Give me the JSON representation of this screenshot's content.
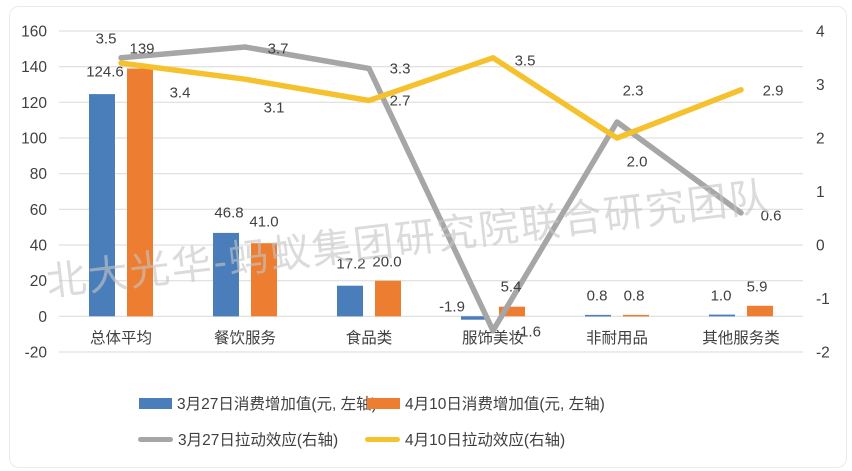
{
  "watermark": {
    "text": "北大光华-蚂蚁集团研究院联合研究团队"
  },
  "colors": {
    "background": "#FFFFFF",
    "grid": "#D9D9D9",
    "axis_text": "#404040",
    "label_text": "#404040",
    "panel_border": "#EBEBEB",
    "watermark": "#C5C5C5"
  },
  "chart_data": {
    "type": "combo-bar-line",
    "categories": [
      "总体平均",
      "餐饮服务",
      "食品类",
      "服饰美妆",
      "非耐用品",
      "其他服务类"
    ],
    "series": [
      {
        "name": "3月27日消费增加值(元, 左轴)",
        "type": "bar",
        "axis": "left",
        "color": "#4A7EBB",
        "values": [
          124.6,
          46.8,
          17.2,
          -1.9,
          0.8,
          1.0
        ],
        "labels": [
          "124.6",
          "46.8",
          "17.2",
          "-1.9",
          "0.8",
          "1.0"
        ]
      },
      {
        "name": "4月10日消费增加值(元, 左轴)",
        "type": "bar",
        "axis": "left",
        "color": "#ED7D31",
        "values": [
          139,
          41.0,
          20.0,
          5.4,
          0.8,
          5.9
        ],
        "labels": [
          "139",
          "41.0",
          "20.0",
          "5.4",
          "0.8",
          "5.9"
        ]
      },
      {
        "name": "3月27日拉动效应(右轴)",
        "type": "line",
        "axis": "right",
        "color": "#A6A6A6",
        "values": [
          3.5,
          3.7,
          3.3,
          -1.6,
          2.3,
          0.6
        ],
        "labels": [
          "3.5",
          "3.7",
          "3.3",
          "-1.6",
          "2.3",
          "0.6"
        ]
      },
      {
        "name": "4月10日拉动效应(右轴)",
        "type": "line",
        "axis": "right",
        "color": "#F5C22E",
        "values": [
          3.4,
          3.1,
          2.7,
          3.5,
          2.0,
          2.9
        ],
        "labels": [
          "3.4",
          "3.1",
          "2.7",
          "3.5",
          "2.0",
          "2.9"
        ]
      }
    ],
    "left_axis": {
      "min": -20,
      "max": 160,
      "step": 20,
      "tick_labels": [
        "160",
        "140",
        "120",
        "100",
        "80",
        "60",
        "40",
        "20",
        "0",
        "-20"
      ]
    },
    "right_axis": {
      "min": -2,
      "max": 4,
      "step": 1,
      "tick_labels": [
        "4",
        "3",
        "2",
        "1",
        "0",
        "-1",
        "-2"
      ]
    },
    "grid": true,
    "legend_position": "bottom",
    "title": ""
  }
}
